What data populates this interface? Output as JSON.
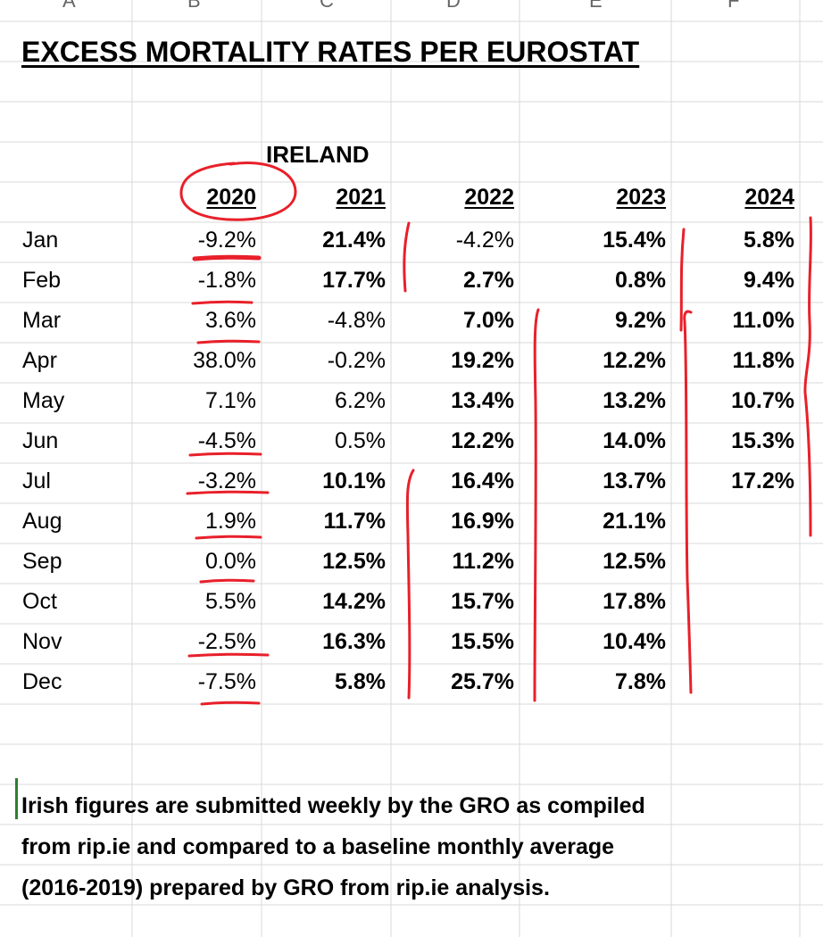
{
  "sheet": {
    "column_headers": [
      "A",
      "B",
      "C",
      "D",
      "E",
      "F"
    ],
    "title": "EXCESS MORTALITY RATES PER EUROSTAT",
    "country": "IRELAND",
    "years": [
      "2020",
      "2021",
      "2022",
      "2023",
      "2024"
    ],
    "months": [
      "Jan",
      "Feb",
      "Mar",
      "Apr",
      "May",
      "Jun",
      "Jul",
      "Aug",
      "Sep",
      "Oct",
      "Nov",
      "Dec"
    ],
    "values": {
      "2020": [
        "-9.2%",
        "-1.8%",
        "3.6%",
        "38.0%",
        "7.1%",
        "-4.5%",
        "-3.2%",
        "1.9%",
        "0.0%",
        "5.5%",
        "-2.5%",
        "-7.5%"
      ],
      "2021": [
        "21.4%",
        "17.7%",
        "-4.8%",
        "-0.2%",
        "6.2%",
        "0.5%",
        "10.1%",
        "11.7%",
        "12.5%",
        "14.2%",
        "16.3%",
        "5.8%"
      ],
      "2022": [
        "-4.2%",
        "2.7%",
        "7.0%",
        "19.2%",
        "13.4%",
        "12.2%",
        "16.4%",
        "16.9%",
        "11.2%",
        "15.7%",
        "15.5%",
        "25.7%"
      ],
      "2023": [
        "15.4%",
        "0.8%",
        "9.2%",
        "12.2%",
        "13.2%",
        "14.0%",
        "13.7%",
        "21.1%",
        "12.5%",
        "17.8%",
        "10.4%",
        "7.8%"
      ],
      "2024": [
        "5.8%",
        "9.4%",
        "11.0%",
        "11.8%",
        "10.7%",
        "15.3%",
        "17.2%",
        "",
        "",
        "",
        "",
        ""
      ]
    },
    "bold": {
      "2020": [
        false,
        false,
        false,
        false,
        false,
        false,
        false,
        false,
        false,
        false,
        false,
        false
      ],
      "2021": [
        true,
        true,
        false,
        false,
        false,
        false,
        true,
        true,
        true,
        true,
        true,
        true
      ],
      "2022": [
        false,
        true,
        true,
        true,
        true,
        true,
        true,
        true,
        true,
        true,
        true,
        true
      ],
      "2023": [
        true,
        true,
        true,
        true,
        true,
        true,
        true,
        true,
        true,
        true,
        true,
        true
      ],
      "2024": [
        true,
        true,
        true,
        true,
        true,
        true,
        true,
        false,
        false,
        false,
        false,
        false
      ]
    },
    "note": "Irish figures are submitted weekly by the GRO as compiled\nfrom rip.ie and compared to a baseline monthly average\n(2016-2019) prepared by GRO from rip.ie analysis.",
    "annotation_color": "#e8202a",
    "grid_color": "#d9d9d9"
  }
}
